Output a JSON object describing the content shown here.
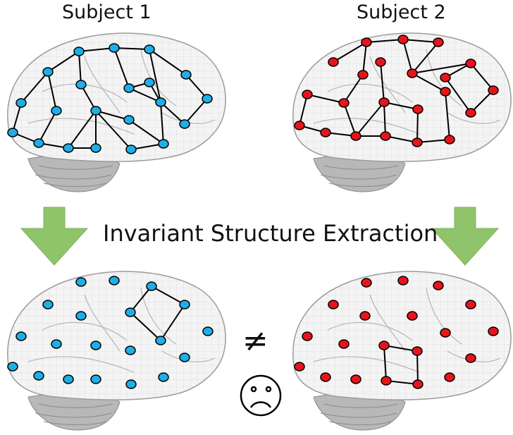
{
  "labels": {
    "subject1": "Subject 1",
    "subject2": "Subject 2",
    "caption": "Invariant Structure Extraction",
    "not_equal": "≠"
  },
  "colors": {
    "subject1_node": "#1eaee8",
    "subject2_node": "#e8141c",
    "arrow": "#8fc46a",
    "edge": "#000000",
    "brain_fill": "#f3f3f3",
    "brain_lines": "#c9c9c9"
  },
  "icons": [
    "down-arrow-icon",
    "sad-face-icon",
    "brain-icon"
  ]
}
